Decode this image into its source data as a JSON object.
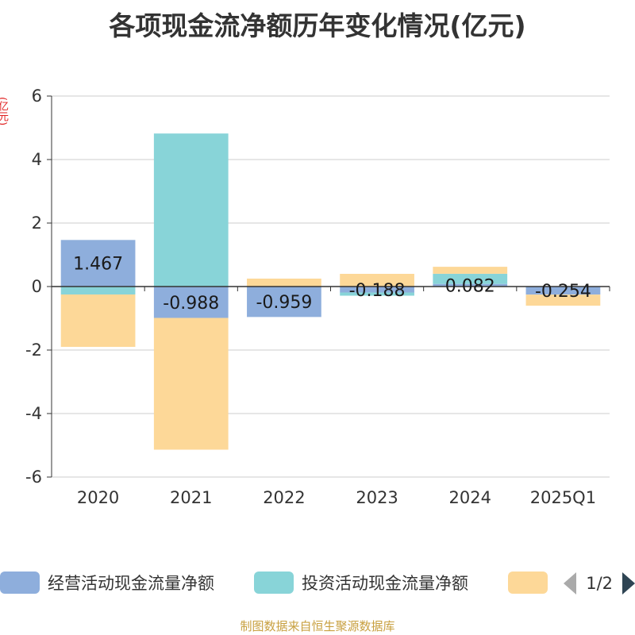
{
  "title": "各项现金流净额历年变化情况(亿元)",
  "unit_label": "(亿元)",
  "source": "制图数据来自恒生聚源数据库",
  "legend": {
    "items": [
      {
        "label": "经营活动现金流量净额",
        "color": "#8eaedc"
      },
      {
        "label": "投资活动现金流量净额",
        "color": "#88d4d8"
      },
      {
        "label": "",
        "color": "#fdd898"
      }
    ],
    "page": "1/2"
  },
  "chart_data": {
    "type": "bar",
    "stacked": true,
    "categories": [
      "2020",
      "2021",
      "2022",
      "2023",
      "2024",
      "2025Q1"
    ],
    "ylim": [
      -6,
      6
    ],
    "yticks": [
      -6,
      -4,
      -2,
      0,
      2,
      4,
      6
    ],
    "grid": true,
    "series": [
      {
        "name": "经营活动现金流量净额",
        "color": "#8eaedc",
        "values": [
          1.467,
          -0.988,
          -0.959,
          -0.188,
          0.082,
          -0.254
        ],
        "labels": [
          "1.467",
          "-0.988",
          "-0.959",
          "-0.188",
          "0.082",
          "-0.254"
        ]
      },
      {
        "name": "投资活动现金流量净额",
        "color": "#88d4d8",
        "values": [
          -0.25,
          4.82,
          0.0,
          -0.1,
          0.32,
          0.0
        ]
      },
      {
        "name": "",
        "color": "#fdd898",
        "values": [
          -1.65,
          -4.15,
          0.25,
          0.4,
          0.22,
          -0.35
        ]
      }
    ]
  }
}
